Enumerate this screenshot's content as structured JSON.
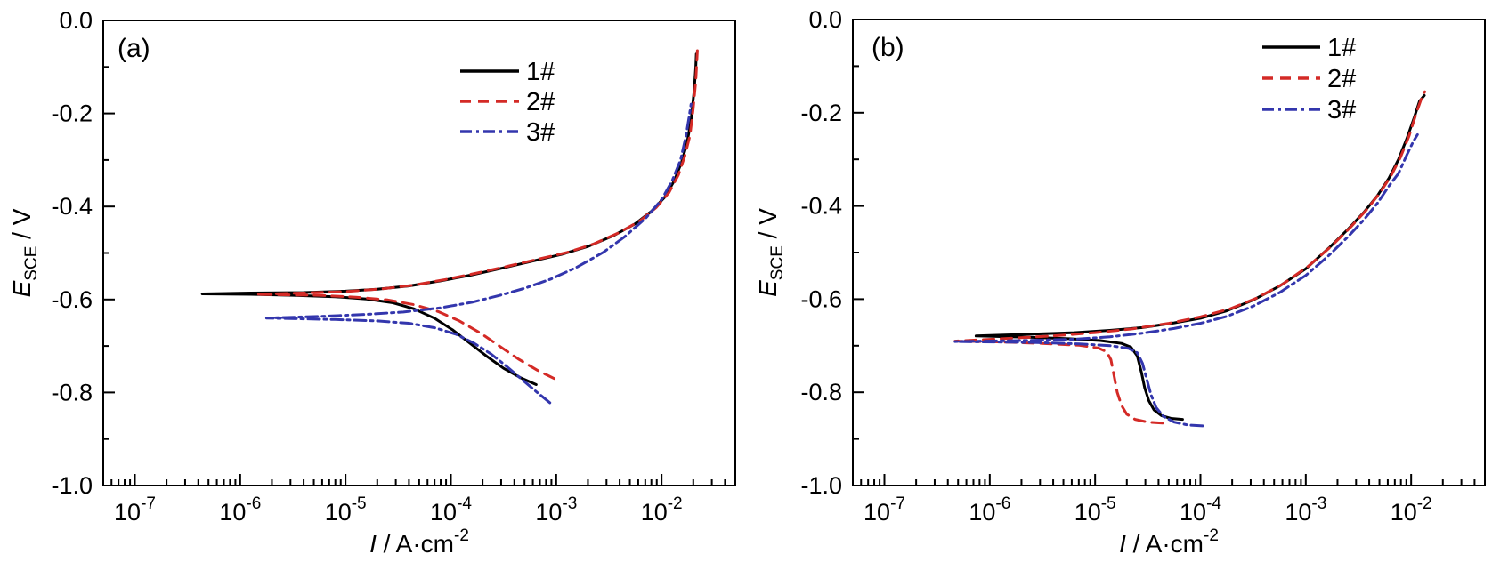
{
  "figure": {
    "background": "#ffffff",
    "axis_color": "#000000",
    "series_styles": [
      {
        "name": "1#",
        "color": "#000000",
        "line_style": "solid"
      },
      {
        "name": "2#",
        "color": "#d42a26",
        "line_style": "dashed"
      },
      {
        "name": "3#",
        "color": "#3336ad",
        "line_style": "dashdot"
      }
    ]
  },
  "chart_data": [
    {
      "panel": "a",
      "panel_label": "(a)",
      "type": "line",
      "title": "",
      "xlabel": {
        "italic": "I",
        "rest": " / A·cm",
        "sup": "-2"
      },
      "ylabel": {
        "italic": "E",
        "sub": "SCE",
        "rest": " / V"
      },
      "x_scale": "log10",
      "xlim_log": [
        -7.3,
        -1.3
      ],
      "x_major_exponents": [
        -7,
        -6,
        -5,
        -4,
        -3,
        -2
      ],
      "ylim": [
        -1.0,
        0.0
      ],
      "y_major_ticks": [
        {
          "v": 0.0,
          "label": "0.0"
        },
        {
          "v": -0.2,
          "label": "-0.2"
        },
        {
          "v": -0.4,
          "label": "-0.4"
        },
        {
          "v": -0.6,
          "label": "-0.6"
        },
        {
          "v": -0.8,
          "label": "-0.8"
        },
        {
          "v": -1.0,
          "label": "-1.0"
        }
      ],
      "y_minor_step": 0.1,
      "grid": false,
      "legend_position": "upper right inside",
      "legend_items": [
        "1#",
        "2#",
        "3#"
      ],
      "series": [
        {
          "name": "1#",
          "color": "#000000",
          "line_style": "solid",
          "points_logI_E": [
            [
              -3.19,
              -0.783
            ],
            [
              -3.34,
              -0.768
            ],
            [
              -3.5,
              -0.748
            ],
            [
              -3.66,
              -0.722
            ],
            [
              -3.82,
              -0.694
            ],
            [
              -3.98,
              -0.666
            ],
            [
              -4.15,
              -0.641
            ],
            [
              -4.35,
              -0.62
            ],
            [
              -4.55,
              -0.607
            ],
            [
              -4.8,
              -0.599
            ],
            [
              -5.1,
              -0.594
            ],
            [
              -5.5,
              -0.591
            ],
            [
              -5.9,
              -0.589
            ],
            [
              -6.36,
              -0.588
            ],
            [
              -5.9,
              -0.586
            ],
            [
              -5.4,
              -0.585
            ],
            [
              -5.0,
              -0.582
            ],
            [
              -4.7,
              -0.578
            ],
            [
              -4.4,
              -0.571
            ],
            [
              -4.1,
              -0.56
            ],
            [
              -3.8,
              -0.547
            ],
            [
              -3.5,
              -0.532
            ],
            [
              -3.2,
              -0.516
            ],
            [
              -2.95,
              -0.503
            ],
            [
              -2.7,
              -0.486
            ],
            [
              -2.45,
              -0.462
            ],
            [
              -2.25,
              -0.437
            ],
            [
              -2.1,
              -0.411
            ],
            [
              -1.97,
              -0.38
            ],
            [
              -1.88,
              -0.345
            ],
            [
              -1.81,
              -0.305
            ],
            [
              -1.76,
              -0.265
            ],
            [
              -1.72,
              -0.215
            ],
            [
              -1.69,
              -0.15
            ],
            [
              -1.675,
              -0.1
            ],
            [
              -1.67,
              -0.072
            ]
          ]
        },
        {
          "name": "2#",
          "color": "#d42a26",
          "line_style": "dashed",
          "points_logI_E": [
            [
              -3.02,
              -0.77
            ],
            [
              -3.18,
              -0.752
            ],
            [
              -3.36,
              -0.728
            ],
            [
              -3.54,
              -0.7
            ],
            [
              -3.72,
              -0.672
            ],
            [
              -3.92,
              -0.646
            ],
            [
              -4.12,
              -0.626
            ],
            [
              -4.35,
              -0.611
            ],
            [
              -4.6,
              -0.601
            ],
            [
              -4.9,
              -0.595
            ],
            [
              -5.25,
              -0.591
            ],
            [
              -5.85,
              -0.589
            ],
            [
              -5.4,
              -0.586
            ],
            [
              -5.0,
              -0.583
            ],
            [
              -4.65,
              -0.577
            ],
            [
              -4.35,
              -0.569
            ],
            [
              -4.05,
              -0.557
            ],
            [
              -3.75,
              -0.543
            ],
            [
              -3.45,
              -0.528
            ],
            [
              -3.15,
              -0.512
            ],
            [
              -2.9,
              -0.499
            ],
            [
              -2.65,
              -0.481
            ],
            [
              -2.4,
              -0.456
            ],
            [
              -2.2,
              -0.43
            ],
            [
              -2.05,
              -0.402
            ],
            [
              -1.93,
              -0.37
            ],
            [
              -1.84,
              -0.332
            ],
            [
              -1.78,
              -0.292
            ],
            [
              -1.73,
              -0.247
            ],
            [
              -1.7,
              -0.19
            ],
            [
              -1.675,
              -0.13
            ],
            [
              -1.66,
              -0.065
            ]
          ]
        },
        {
          "name": "3#",
          "color": "#3336ad",
          "line_style": "dashdot",
          "points_logI_E": [
            [
              -3.06,
              -0.822
            ],
            [
              -3.18,
              -0.8
            ],
            [
              -3.32,
              -0.773
            ],
            [
              -3.47,
              -0.744
            ],
            [
              -3.62,
              -0.717
            ],
            [
              -3.78,
              -0.694
            ],
            [
              -3.95,
              -0.675
            ],
            [
              -4.15,
              -0.661
            ],
            [
              -4.4,
              -0.651
            ],
            [
              -4.7,
              -0.646
            ],
            [
              -5.1,
              -0.643
            ],
            [
              -5.75,
              -0.64
            ],
            [
              -5.2,
              -0.636
            ],
            [
              -4.8,
              -0.632
            ],
            [
              -4.45,
              -0.627
            ],
            [
              -4.1,
              -0.618
            ],
            [
              -3.8,
              -0.606
            ],
            [
              -3.55,
              -0.592
            ],
            [
              -3.3,
              -0.576
            ],
            [
              -3.05,
              -0.556
            ],
            [
              -2.8,
              -0.53
            ],
            [
              -2.55,
              -0.498
            ],
            [
              -2.35,
              -0.465
            ],
            [
              -2.15,
              -0.425
            ],
            [
              -2.0,
              -0.385
            ],
            [
              -1.9,
              -0.345
            ],
            [
              -1.82,
              -0.3
            ],
            [
              -1.77,
              -0.25
            ],
            [
              -1.74,
              -0.21
            ],
            [
              -1.72,
              -0.18
            ]
          ]
        }
      ]
    },
    {
      "panel": "b",
      "panel_label": "(b)",
      "type": "line",
      "title": "",
      "xlabel": {
        "italic": "I",
        "rest": " / A·cm",
        "sup": "-2"
      },
      "ylabel": {
        "italic": "E",
        "sub": "SCE",
        "rest": " / V"
      },
      "x_scale": "log10",
      "xlim_log": [
        -7.3,
        -1.3
      ],
      "x_major_exponents": [
        -7,
        -6,
        -5,
        -4,
        -3,
        -2
      ],
      "ylim": [
        -1.0,
        0.0
      ],
      "y_major_ticks": [
        {
          "v": 0.0,
          "label": "0.0"
        },
        {
          "v": -0.2,
          "label": "-0.2"
        },
        {
          "v": -0.4,
          "label": "-0.4"
        },
        {
          "v": -0.6,
          "label": "-0.6"
        },
        {
          "v": -0.8,
          "label": "-0.8"
        },
        {
          "v": -1.0,
          "label": "-1.0"
        }
      ],
      "y_minor_step": 0.1,
      "grid": false,
      "legend_position": "upper right inside",
      "legend_items": [
        "1#",
        "2#",
        "3#"
      ],
      "series": [
        {
          "name": "1#",
          "color": "#000000",
          "line_style": "solid",
          "points_logI_E": [
            [
              -4.17,
              -0.858
            ],
            [
              -4.28,
              -0.856
            ],
            [
              -4.37,
              -0.85
            ],
            [
              -4.44,
              -0.838
            ],
            [
              -4.49,
              -0.818
            ],
            [
              -4.53,
              -0.79
            ],
            [
              -4.56,
              -0.757
            ],
            [
              -4.6,
              -0.722
            ],
            [
              -4.66,
              -0.703
            ],
            [
              -4.75,
              -0.695
            ],
            [
              -4.95,
              -0.689
            ],
            [
              -5.25,
              -0.685
            ],
            [
              -5.6,
              -0.682
            ],
            [
              -6.13,
              -0.679
            ],
            [
              -5.6,
              -0.675
            ],
            [
              -5.2,
              -0.672
            ],
            [
              -4.86,
              -0.667
            ],
            [
              -4.55,
              -0.661
            ],
            [
              -4.25,
              -0.651
            ],
            [
              -4.0,
              -0.641
            ],
            [
              -3.75,
              -0.625
            ],
            [
              -3.5,
              -0.602
            ],
            [
              -3.25,
              -0.572
            ],
            [
              -3.0,
              -0.535
            ],
            [
              -2.78,
              -0.49
            ],
            [
              -2.6,
              -0.45
            ],
            [
              -2.45,
              -0.414
            ],
            [
              -2.32,
              -0.378
            ],
            [
              -2.21,
              -0.34
            ],
            [
              -2.12,
              -0.3
            ],
            [
              -2.04,
              -0.255
            ],
            [
              -1.97,
              -0.21
            ],
            [
              -1.92,
              -0.175
            ],
            [
              -1.875,
              -0.163
            ]
          ]
        },
        {
          "name": "2#",
          "color": "#d42a26",
          "line_style": "dashed",
          "points_logI_E": [
            [
              -4.36,
              -0.866
            ],
            [
              -4.5,
              -0.864
            ],
            [
              -4.62,
              -0.858
            ],
            [
              -4.7,
              -0.847
            ],
            [
              -4.75,
              -0.828
            ],
            [
              -4.79,
              -0.8
            ],
            [
              -4.82,
              -0.765
            ],
            [
              -4.85,
              -0.73
            ],
            [
              -4.89,
              -0.713
            ],
            [
              -4.97,
              -0.705
            ],
            [
              -5.15,
              -0.699
            ],
            [
              -5.5,
              -0.695
            ],
            [
              -5.9,
              -0.692
            ],
            [
              -6.33,
              -0.69
            ],
            [
              -5.8,
              -0.684
            ],
            [
              -5.4,
              -0.679
            ],
            [
              -5.0,
              -0.672
            ],
            [
              -4.65,
              -0.664
            ],
            [
              -4.3,
              -0.652
            ],
            [
              -4.0,
              -0.638
            ],
            [
              -3.72,
              -0.621
            ],
            [
              -3.47,
              -0.598
            ],
            [
              -3.22,
              -0.568
            ],
            [
              -2.98,
              -0.53
            ],
            [
              -2.76,
              -0.487
            ],
            [
              -2.58,
              -0.447
            ],
            [
              -2.43,
              -0.41
            ],
            [
              -2.3,
              -0.373
            ],
            [
              -2.19,
              -0.335
            ],
            [
              -2.1,
              -0.295
            ],
            [
              -2.02,
              -0.25
            ],
            [
              -1.95,
              -0.2
            ],
            [
              -1.9,
              -0.168
            ],
            [
              -1.87,
              -0.155
            ]
          ]
        },
        {
          "name": "3#",
          "color": "#3336ad",
          "line_style": "dashdot",
          "points_logI_E": [
            [
              -3.98,
              -0.872
            ],
            [
              -4.12,
              -0.87
            ],
            [
              -4.25,
              -0.864
            ],
            [
              -4.35,
              -0.852
            ],
            [
              -4.42,
              -0.833
            ],
            [
              -4.47,
              -0.805
            ],
            [
              -4.51,
              -0.772
            ],
            [
              -4.55,
              -0.738
            ],
            [
              -4.6,
              -0.715
            ],
            [
              -4.68,
              -0.706
            ],
            [
              -4.85,
              -0.7
            ],
            [
              -5.15,
              -0.696
            ],
            [
              -5.6,
              -0.693
            ],
            [
              -6.33,
              -0.691
            ],
            [
              -5.7,
              -0.689
            ],
            [
              -5.2,
              -0.686
            ],
            [
              -4.86,
              -0.681
            ],
            [
              -4.55,
              -0.673
            ],
            [
              -4.25,
              -0.663
            ],
            [
              -4.0,
              -0.652
            ],
            [
              -3.75,
              -0.637
            ],
            [
              -3.5,
              -0.615
            ],
            [
              -3.25,
              -0.586
            ],
            [
              -3.0,
              -0.549
            ],
            [
              -2.78,
              -0.506
            ],
            [
              -2.6,
              -0.466
            ],
            [
              -2.45,
              -0.43
            ],
            [
              -2.32,
              -0.394
            ],
            [
              -2.21,
              -0.357
            ],
            [
              -2.12,
              -0.33
            ],
            [
              -2.04,
              -0.29
            ],
            [
              -1.98,
              -0.262
            ],
            [
              -1.94,
              -0.247
            ]
          ]
        }
      ]
    }
  ]
}
